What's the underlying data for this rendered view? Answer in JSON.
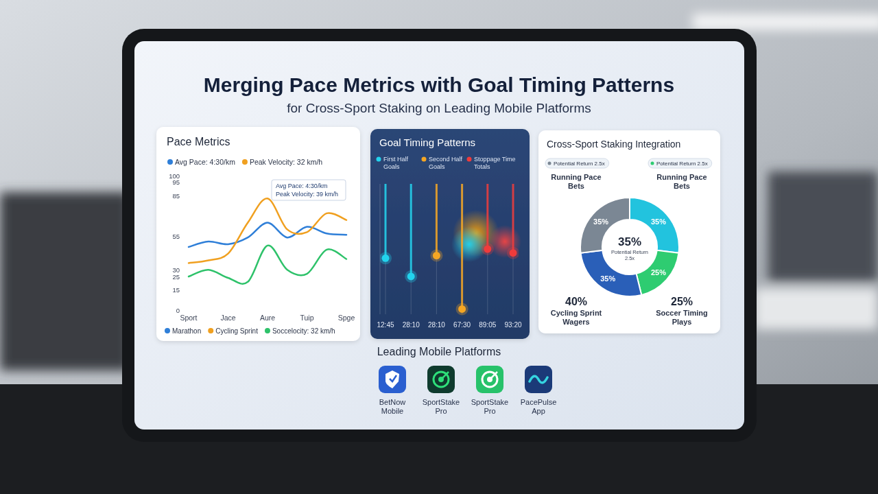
{
  "header": {
    "title": "Merging Pace Metrics with Goal Timing Patterns",
    "subtitle": "for Cross-Sport Staking on Leading Mobile Platforms"
  },
  "chart_data": [
    {
      "type": "line",
      "title": "Pace Metrics",
      "annotations": [
        "Avg Pace: 4:30/km",
        "Peak Velocity: 32 km/h",
        "Avg Pace: 4:30/km",
        "Peak Velocity: 39 km/h"
      ],
      "categories": [
        "Sport",
        null,
        "Jace",
        null,
        "Aure",
        null,
        "Tuip",
        null,
        "Spge"
      ],
      "series": [
        {
          "name": "Marathon",
          "color": "#2f7fd8",
          "values": [
            47,
            51,
            49,
            54,
            65,
            54,
            62,
            57,
            56
          ]
        },
        {
          "name": "Cycling Sprint",
          "color": "#f0a020",
          "values": [
            35,
            37,
            42,
            65,
            83,
            60,
            58,
            72,
            67
          ]
        },
        {
          "name": "Soccelocity: 32 km/h",
          "color": "#2ec26a",
          "values": [
            25,
            30,
            24,
            21,
            48,
            30,
            27,
            45,
            38
          ]
        }
      ],
      "ylim": [
        0,
        100
      ],
      "yticks": [
        0,
        15,
        25,
        30,
        55,
        85,
        95,
        100
      ],
      "grid": false,
      "legend": "bottom"
    },
    {
      "type": "scatter",
      "title": "Goal Timing Patterns",
      "categories": [
        "12:45",
        "28:10",
        "28:10",
        "67:30",
        "89:05",
        "93:20"
      ],
      "series": [
        {
          "name": "First Half Goals",
          "color": "#22d3ee",
          "values": [
            43,
            29,
            null,
            null,
            null,
            null
          ]
        },
        {
          "name": "Second Half Goals",
          "color": "#f5a623",
          "values": [
            null,
            null,
            45,
            4,
            null,
            null
          ]
        },
        {
          "name": "Stoppage Time Totals",
          "color": "#ef3b3b",
          "values": [
            null,
            null,
            null,
            null,
            50,
            47
          ]
        }
      ],
      "ylim": [
        0,
        100
      ],
      "tick_labels": "x",
      "grid": true,
      "legend": "top"
    },
    {
      "type": "pie",
      "title": "Cross-Sport Staking Integration",
      "categories": [
        "Running Pace Bets",
        "Soccer Timing Plays",
        "Cycling Sprint Wagers",
        "Running Pace Bets"
      ],
      "values": [
        35,
        25,
        35,
        35
      ],
      "value_labels": [
        "35%",
        "25%",
        "35%",
        "35%"
      ],
      "colors": [
        "#22c3de",
        "#2ecc71",
        "#2a5fb8",
        "#7b8794"
      ],
      "data_labels": true,
      "annotations": [
        "35%",
        "Potential Return 2.5x",
        "Potential Return 2.5x",
        "Potential Return 2.5x",
        "40%",
        "25%"
      ]
    }
  ],
  "platforms": {
    "title": "Leading Mobile Platforms",
    "items": [
      "BetNow Mobile",
      "SportStake Pro",
      "SportStake Pro",
      "PacePulse App"
    ]
  }
}
